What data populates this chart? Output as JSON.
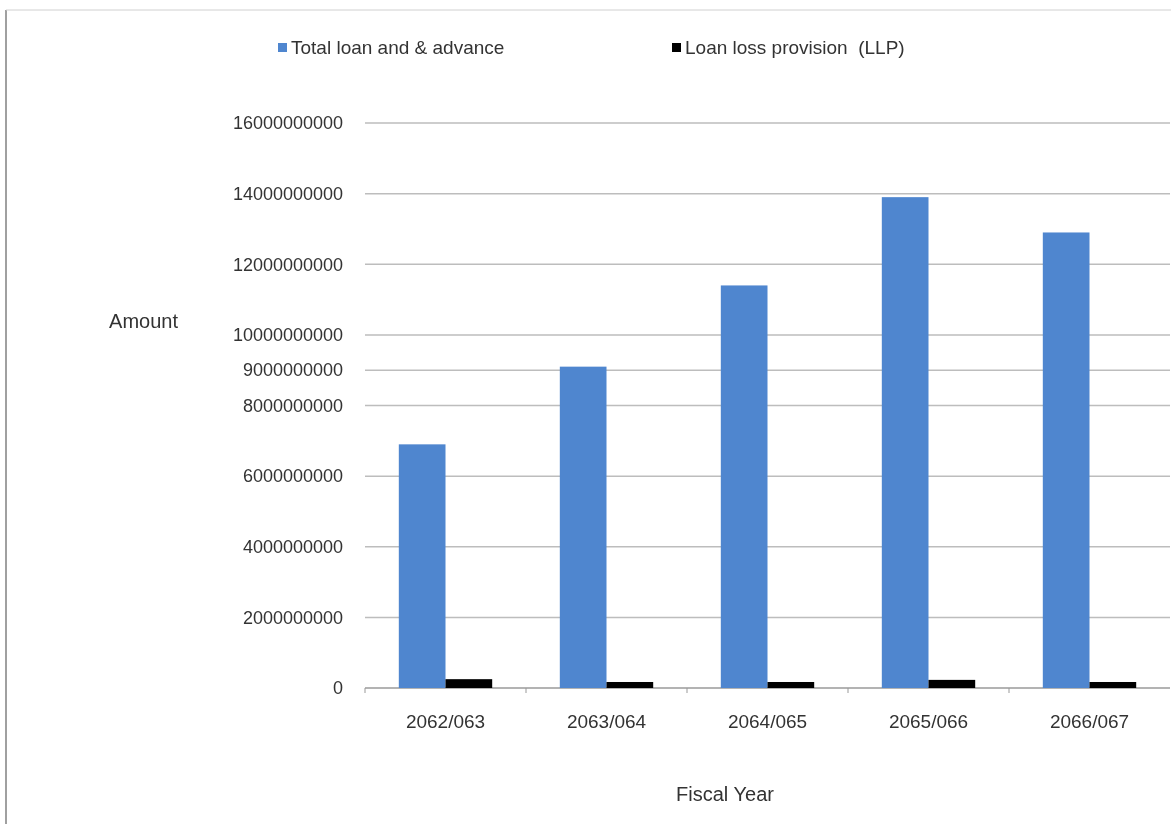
{
  "chart_data": {
    "type": "bar",
    "xlabel": "Fiscal Year",
    "ylabel": "Amount",
    "categories": [
      "2062/063",
      "2063/064",
      "2064/065",
      "2065/066",
      "2066/067"
    ],
    "series": [
      {
        "name": "Total loan and & advance",
        "color": "#4f86cf",
        "values": [
          6900000000,
          9100000000,
          11400000000,
          13900000000,
          12900000000
        ]
      },
      {
        "name": "Loan loss provision  (LLP)",
        "color": "#000000",
        "values": [
          250000000,
          170000000,
          170000000,
          230000000,
          170000000
        ]
      }
    ],
    "ylim": [
      0,
      16000000000
    ],
    "yticks": [
      0,
      2000000000,
      4000000000,
      6000000000,
      8000000000,
      9000000000,
      10000000000,
      12000000000,
      14000000000,
      16000000000
    ],
    "grid": "y",
    "legend": "top"
  }
}
